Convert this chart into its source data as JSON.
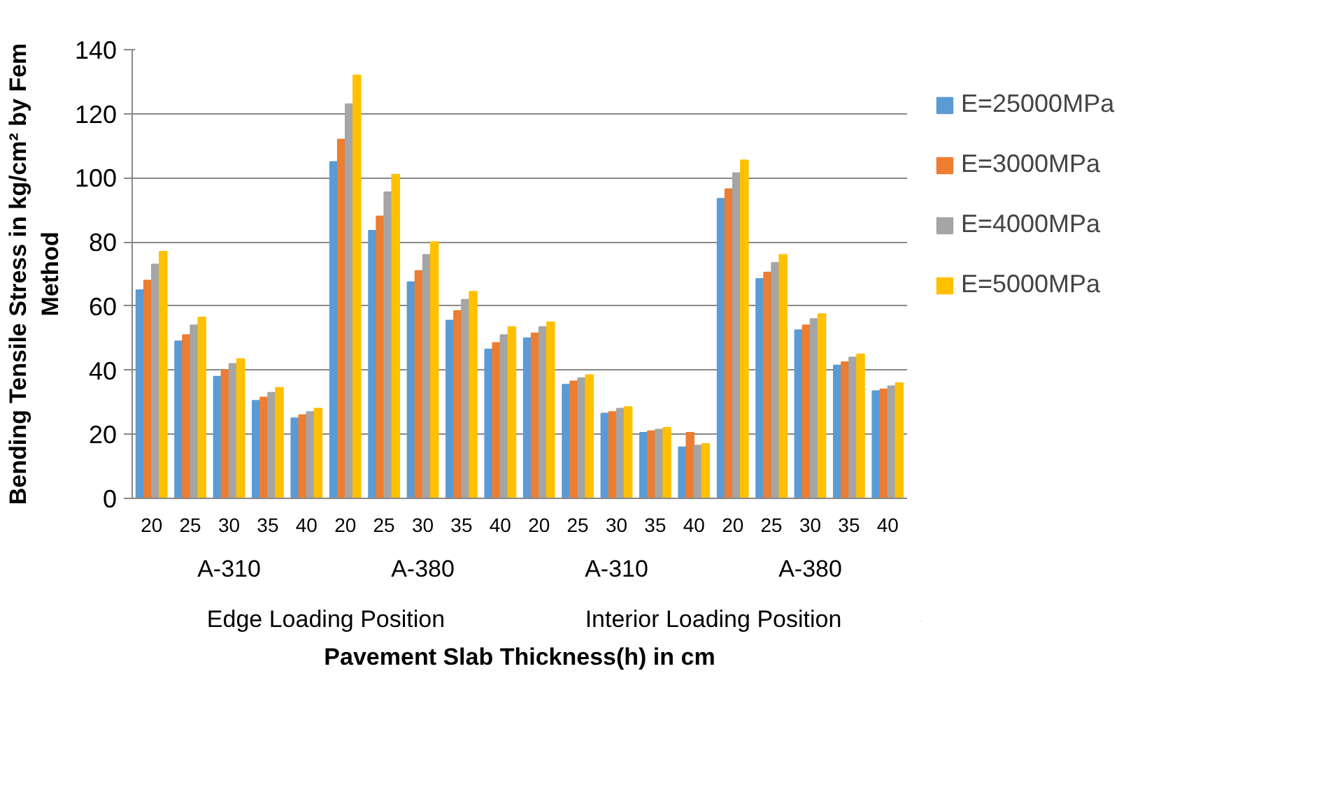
{
  "chart_data": {
    "type": "bar",
    "xlabel": "Pavement Slab Thickness(h) in cm",
    "ylabel": "Bending Tensile Stress in kg/cm² by Fem Method",
    "categories": [
      "20",
      "25",
      "30",
      "35",
      "40",
      "20",
      "25",
      "30",
      "35",
      "40",
      "20",
      "25",
      "30",
      "35",
      "40",
      "20",
      "25",
      "30",
      "35",
      "40"
    ],
    "annotations": [
      "A-310",
      "A-380",
      "A-310",
      "A-380",
      "Edge Loading Position",
      "Interior Loading Position"
    ],
    "series": [
      {
        "name": "E=25000MPa",
        "color": "#5b9bd5",
        "values": [
          65,
          49,
          38,
          30.5,
          25,
          105,
          83.5,
          67.5,
          55.5,
          46.5,
          50,
          35.5,
          26.5,
          20.5,
          16,
          93.5,
          68.5,
          52.5,
          41.5,
          33.5
        ]
      },
      {
        "name": "E=3000MPa",
        "color": "#ed7d31",
        "values": [
          68,
          51,
          40,
          31.5,
          26,
          112,
          88,
          71,
          58.5,
          48.5,
          51.5,
          36.5,
          27,
          21,
          20.5,
          96.5,
          70.5,
          54,
          42.5,
          34
        ]
      },
      {
        "name": "E=4000MPa",
        "color": "#a5a5a5",
        "values": [
          73,
          54,
          42,
          33,
          27,
          123,
          95.5,
          76,
          62,
          51,
          53.5,
          37.5,
          28,
          21.5,
          16.5,
          101.5,
          73.5,
          56,
          44,
          35
        ]
      },
      {
        "name": "E=5000MPa",
        "color": "#ffc000",
        "values": [
          77,
          56.5,
          43.5,
          34.5,
          28,
          132,
          101,
          80,
          64.5,
          53.5,
          55,
          38.5,
          28.5,
          22,
          17,
          105.5,
          76,
          57.5,
          45,
          36
        ]
      }
    ],
    "ylim": [
      0,
      140
    ],
    "yticks": [
      0,
      20,
      40,
      60,
      80,
      100,
      120,
      140
    ],
    "grid": "y",
    "legend": "right"
  }
}
